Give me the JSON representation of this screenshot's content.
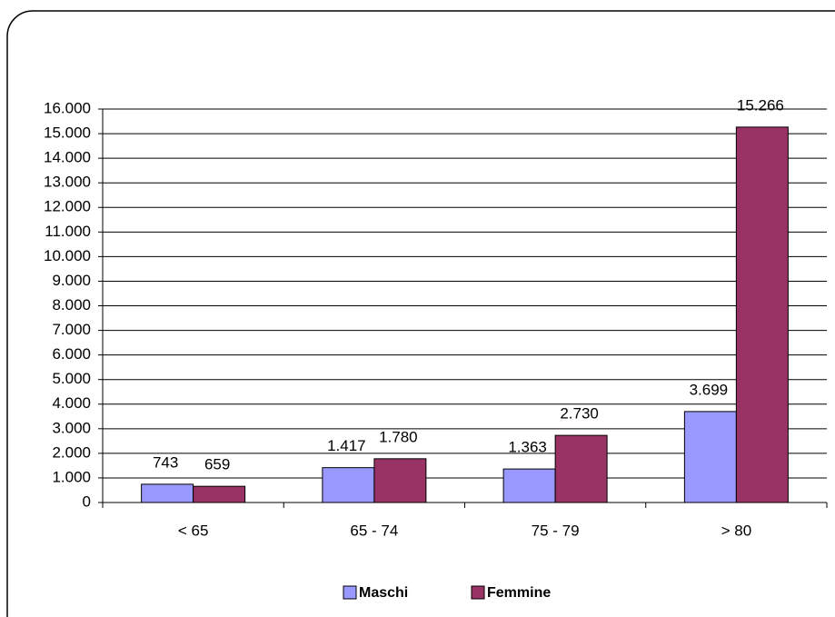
{
  "chart_data": {
    "type": "bar",
    "categories": [
      "< 65",
      "65 - 74",
      "75 - 79",
      "> 80"
    ],
    "series": [
      {
        "name": "Maschi",
        "color": "#9999ff",
        "values": [
          743,
          1417,
          1363,
          3699
        ],
        "value_labels": [
          "743",
          "1.417",
          "1.363",
          "3.699"
        ]
      },
      {
        "name": "Femmine",
        "color": "#993366",
        "values": [
          659,
          1780,
          2730,
          15266
        ],
        "value_labels": [
          "659",
          "1.780",
          "2.730",
          "15.266"
        ]
      }
    ],
    "ylim": [
      0,
      16000
    ],
    "yticks": [
      0,
      {
        "value": 1000,
        "label": "1.000"
      },
      {
        "value": 2000,
        "label": "2.000"
      },
      {
        "value": 3000,
        "label": "3.000"
      },
      {
        "value": 4000,
        "label": "4.000"
      },
      {
        "value": 5000,
        "label": "5.000"
      },
      {
        "value": 6000,
        "label": "6.000"
      },
      {
        "value": 7000,
        "label": "7.000"
      },
      {
        "value": 8000,
        "label": "8.000"
      },
      {
        "value": 9000,
        "label": "9.000"
      },
      {
        "value": 10000,
        "label": "10.000"
      },
      {
        "value": 11000,
        "label": "11.000"
      },
      {
        "value": 12000,
        "label": "12.000"
      },
      {
        "value": 13000,
        "label": "13.000"
      },
      {
        "value": 14000,
        "label": "14.000"
      },
      {
        "value": 15000,
        "label": "15.000"
      },
      {
        "value": 16000,
        "label": "16.000"
      }
    ],
    "grid": true,
    "legend": "bottom"
  }
}
